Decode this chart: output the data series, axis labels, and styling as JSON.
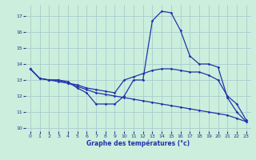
{
  "title": "Graphe des températures (°c)",
  "bg_color": "#cceedd",
  "grid_color": "#aacccc",
  "line_color": "#2233aa",
  "xlim": [
    -0.5,
    23.5
  ],
  "ylim": [
    9.8,
    17.7
  ],
  "yticks": [
    10,
    11,
    12,
    13,
    14,
    15,
    16,
    17
  ],
  "xticks": [
    0,
    1,
    2,
    3,
    4,
    5,
    6,
    7,
    8,
    9,
    10,
    11,
    12,
    13,
    14,
    15,
    16,
    17,
    18,
    19,
    20,
    21,
    22,
    23
  ],
  "curve1_x": [
    0,
    1,
    2,
    3,
    4,
    5,
    6,
    7,
    8,
    9,
    10,
    11,
    12,
    13,
    14,
    15,
    16,
    17,
    18,
    19,
    20,
    21,
    22,
    23
  ],
  "curve1_y": [
    13.7,
    13.1,
    13.0,
    13.0,
    12.9,
    12.5,
    12.2,
    11.5,
    11.5,
    11.5,
    12.0,
    13.0,
    13.0,
    16.7,
    17.3,
    17.2,
    16.1,
    14.5,
    14.0,
    14.0,
    13.8,
    11.9,
    11.0,
    10.4
  ],
  "curve2_x": [
    0,
    1,
    2,
    3,
    4,
    5,
    6,
    7,
    8,
    9,
    10,
    11,
    12,
    13,
    14,
    15,
    16,
    17,
    18,
    19,
    20,
    21,
    22,
    23
  ],
  "curve2_y": [
    13.7,
    13.1,
    13.0,
    13.0,
    12.8,
    12.7,
    12.5,
    12.4,
    12.3,
    12.2,
    13.0,
    13.2,
    13.4,
    13.6,
    13.7,
    13.7,
    13.6,
    13.5,
    13.5,
    13.3,
    13.0,
    12.0,
    11.5,
    10.5
  ],
  "curve3_x": [
    0,
    1,
    2,
    3,
    4,
    5,
    6,
    7,
    8,
    9,
    10,
    11,
    12,
    13,
    14,
    15,
    16,
    17,
    18,
    19,
    20,
    21,
    22,
    23
  ],
  "curve3_y": [
    13.7,
    13.1,
    13.0,
    12.9,
    12.8,
    12.6,
    12.4,
    12.2,
    12.1,
    12.0,
    11.9,
    11.8,
    11.7,
    11.6,
    11.5,
    11.4,
    11.3,
    11.2,
    11.1,
    11.0,
    10.9,
    10.8,
    10.6,
    10.4
  ]
}
